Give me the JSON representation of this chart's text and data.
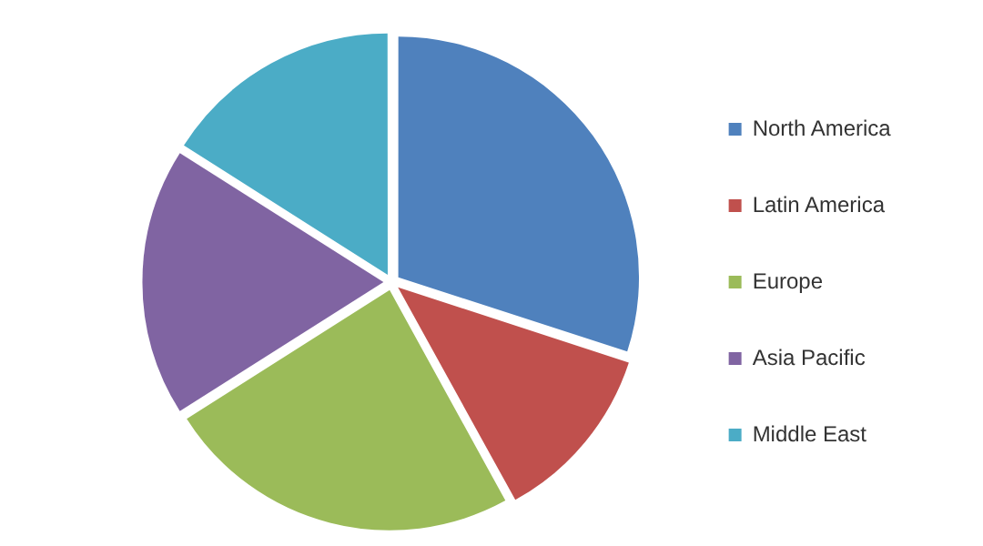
{
  "chart_data": {
    "type": "pie",
    "categories": [
      "North America",
      "Latin America",
      "Europe",
      "Asia Pacific",
      "Middle East"
    ],
    "values": [
      30,
      12,
      24,
      18,
      16
    ],
    "colors": [
      "#4f81bd",
      "#c0504d",
      "#9bbb59",
      "#8064a2",
      "#4bacc6"
    ],
    "legend": "right"
  }
}
